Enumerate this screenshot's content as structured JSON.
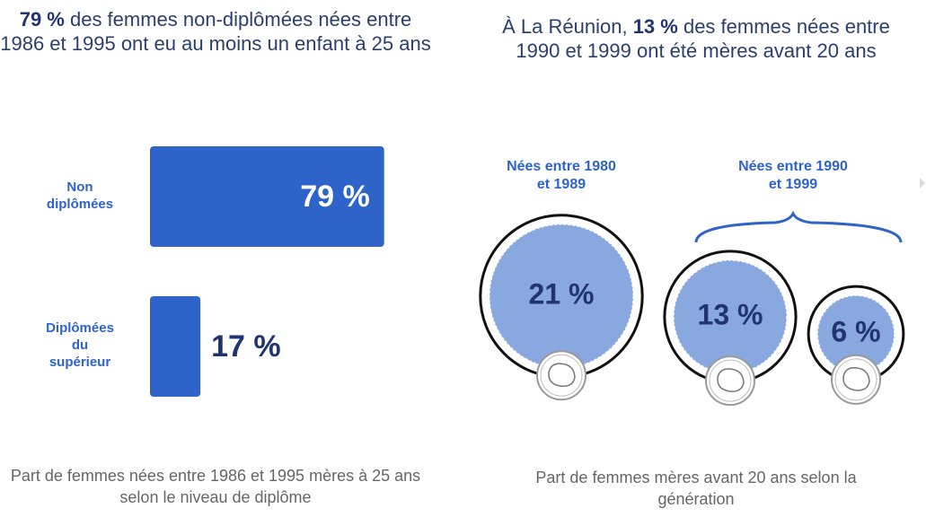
{
  "chart_data": [
    {
      "type": "bar",
      "title_parts": [
        {
          "text": "79 %",
          "bold": true
        },
        {
          "text": " des femmes non-diplômées nées entre 1986 et 1995 ont eu au moins un enfant à 25 ans",
          "bold": false
        }
      ],
      "categories": [
        "Non diplômées",
        "Diplômées du supérieur"
      ],
      "values": [
        79,
        17
      ],
      "value_labels": [
        "79 %",
        "17 %"
      ],
      "color": "#2e63c9",
      "caption": "Part de femmes nées entre 1986 et 1995 mères à 25 ans selon le niveau de diplôme"
    },
    {
      "type": "bubble",
      "title_parts": [
        {
          "text": "À La Réunion, ",
          "bold": false
        },
        {
          "text": "13 %",
          "bold": true
        },
        {
          "text": " des femmes nées entre 1990 et 1999 ont été mères avant 20 ans",
          "bold": false
        }
      ],
      "series": [
        {
          "name": "Nées entre 1980 et 1989",
          "values": [
            21
          ],
          "value_labels": [
            "21 %"
          ]
        },
        {
          "name": "Nées entre 1990 et 1999",
          "values": [
            13,
            6
          ],
          "value_labels": [
            "13 %",
            "6 %"
          ]
        }
      ],
      "color": "#8aa8e0",
      "caption": "Part de femmes  mères avant 20 ans selon la génération"
    }
  ]
}
